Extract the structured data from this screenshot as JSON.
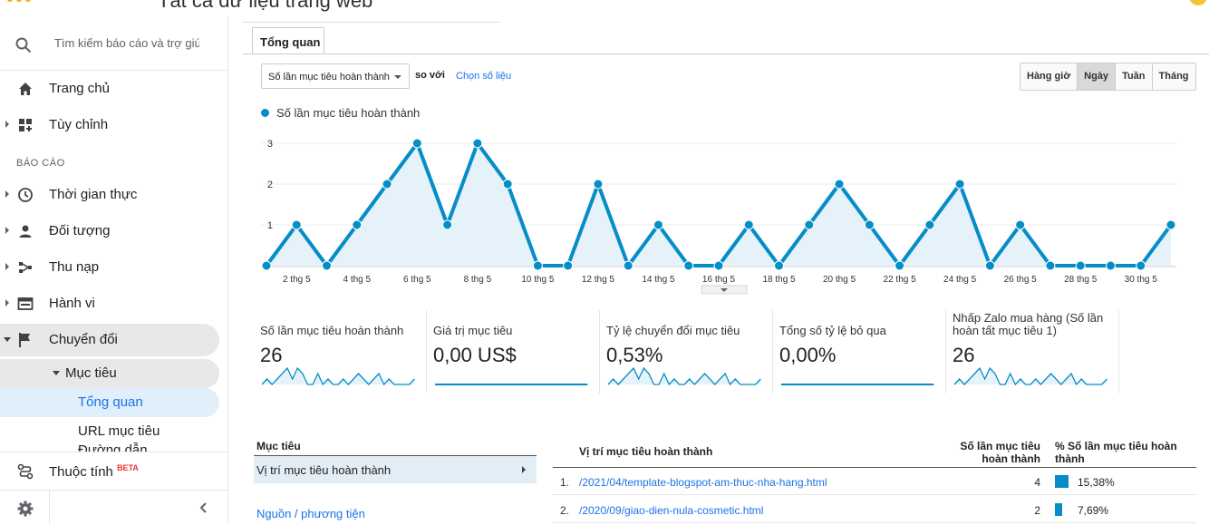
{
  "header": {
    "title": "Tất cả dữ liệu trang web"
  },
  "search": {
    "placeholder": "Tìm kiếm báo cáo và trợ giú"
  },
  "sidebar": {
    "section_label": "BÁO CÁO",
    "items": [
      {
        "label": "Trang chủ",
        "icon": "home-icon"
      },
      {
        "label": "Tùy chỉnh",
        "icon": "dashboard-icon"
      },
      {
        "label": "Thời gian thực",
        "icon": "clock-icon"
      },
      {
        "label": "Đối tượng",
        "icon": "person-icon"
      },
      {
        "label": "Thu nạp",
        "icon": "acquisition-icon"
      },
      {
        "label": "Hành vi",
        "icon": "behavior-icon"
      },
      {
        "label": "Chuyển đổi",
        "icon": "flag-icon"
      }
    ],
    "sub_goal": "Mục tiêu",
    "sub_overview": "Tổng quan",
    "sub_url": "URL mục tiêu",
    "sub_cut": "Đường dẫn",
    "property": {
      "label": "Thuộc tính",
      "badge": "BETA"
    }
  },
  "main": {
    "tab": "Tổng quan",
    "metric_select": "Số lần mục tiêu hoàn thành",
    "compare_label": "so với",
    "choose_metric": "Chọn số liệu",
    "periods": [
      "Hàng giờ",
      "Ngày",
      "Tuần",
      "Tháng"
    ],
    "active_period": "Ngày",
    "legend": "Số lần mục tiêu hoàn thành"
  },
  "chart_data": {
    "type": "area",
    "series": [
      {
        "name": "Số lần mục tiêu hoàn thành",
        "color": "#058dc7",
        "values": [
          0,
          1,
          0,
          1,
          2,
          3,
          1,
          3,
          2,
          0,
          0,
          2,
          0,
          1,
          0,
          0,
          1,
          0,
          1,
          2,
          1,
          0,
          1,
          2,
          0,
          1,
          0,
          0,
          0,
          0,
          1
        ]
      }
    ],
    "x": [
      "1 thg 5",
      "2 thg 5",
      "3 thg 5",
      "4 thg 5",
      "5 thg 5",
      "6 thg 5",
      "7 thg 5",
      "8 thg 5",
      "9 thg 5",
      "10 thg 5",
      "11 thg 5",
      "12 thg 5",
      "13 thg 5",
      "14 thg 5",
      "15 thg 5",
      "16 thg 5",
      "17 thg 5",
      "18 thg 5",
      "19 thg 5",
      "20 thg 5",
      "21 thg 5",
      "22 thg 5",
      "23 thg 5",
      "24 thg 5",
      "25 thg 5",
      "26 thg 5",
      "27 thg 5",
      "28 thg 5",
      "29 thg 5",
      "30 thg 5",
      "31 thg 5"
    ],
    "xticks": [
      "2 thg 5",
      "4 thg 5",
      "6 thg 5",
      "8 thg 5",
      "10 thg 5",
      "12 thg 5",
      "14 thg 5",
      "16 thg 5",
      "18 thg 5",
      "20 thg 5",
      "22 thg 5",
      "24 thg 5",
      "26 thg 5",
      "28 thg 5",
      "30 thg 5"
    ],
    "yticks": [
      1,
      2,
      3
    ],
    "ylim": [
      0,
      3
    ],
    "grid": true
  },
  "scorecards": [
    {
      "name": "Số lần mục tiêu hoàn thành",
      "value": "26",
      "spark": [
        0,
        1,
        0,
        1,
        2,
        3,
        1,
        3,
        2,
        0,
        0,
        2,
        0,
        1,
        0,
        0,
        1,
        0,
        1,
        2,
        1,
        0,
        1,
        2,
        0,
        1,
        0,
        0,
        0,
        0,
        1
      ]
    },
    {
      "name": "Giá trị mục tiêu",
      "value": "0,00 US$",
      "spark": [
        0,
        0,
        0,
        0,
        0,
        0,
        0,
        0,
        0,
        0,
        0,
        0,
        0,
        0,
        0,
        0,
        0,
        0,
        0,
        0,
        0,
        0,
        0,
        0,
        0,
        0,
        0,
        0,
        0,
        0,
        0
      ]
    },
    {
      "name": "Tỷ lệ chuyển đổi mục tiêu",
      "value": "0,53%",
      "spark": [
        0,
        1,
        0,
        1,
        2,
        3,
        1,
        3,
        2,
        0,
        0,
        2,
        0,
        1,
        0,
        0,
        1,
        0,
        1,
        2,
        1,
        0,
        1,
        2,
        0,
        1,
        0,
        0,
        0,
        0,
        1
      ]
    },
    {
      "name": "Tổng số tỷ lệ bỏ qua",
      "value": "0,00%",
      "spark": [
        0,
        0,
        0,
        0,
        0,
        0,
        0,
        0,
        0,
        0,
        0,
        0,
        0,
        0,
        0,
        0,
        0,
        0,
        0,
        0,
        0,
        0,
        0,
        0,
        0,
        0,
        0,
        0,
        0,
        0,
        0
      ]
    },
    {
      "name": "Nhấp Zalo mua hàng (Số lần hoàn tất mục tiêu 1)",
      "value": "26",
      "spark": [
        0,
        1,
        0,
        1,
        2,
        3,
        1,
        3,
        2,
        0,
        0,
        2,
        0,
        1,
        0,
        0,
        1,
        0,
        1,
        2,
        1,
        0,
        1,
        2,
        0,
        1,
        0,
        0,
        0,
        0,
        1
      ]
    }
  ],
  "goal_panel": {
    "header": "Mục tiêu",
    "selected": "Vị trí mục tiêu hoàn thành",
    "link": "Nguồn / phương tiện"
  },
  "table": {
    "col_location": "Vị trí mục tiêu hoàn thành",
    "col_count": "Số lần mục tiêu hoàn thành",
    "col_pct": "% Số lần mục tiêu hoàn thành",
    "rows": [
      {
        "num": "1.",
        "path": "/2021/04/template-blogspot-am-thuc-nha-hang.html",
        "count": "4",
        "pct": "15,38%",
        "share": 0.1538
      },
      {
        "num": "2.",
        "path": "/2020/09/giao-dien-nula-cosmetic.html",
        "count": "2",
        "pct": "7,69%",
        "share": 0.0769
      }
    ]
  }
}
